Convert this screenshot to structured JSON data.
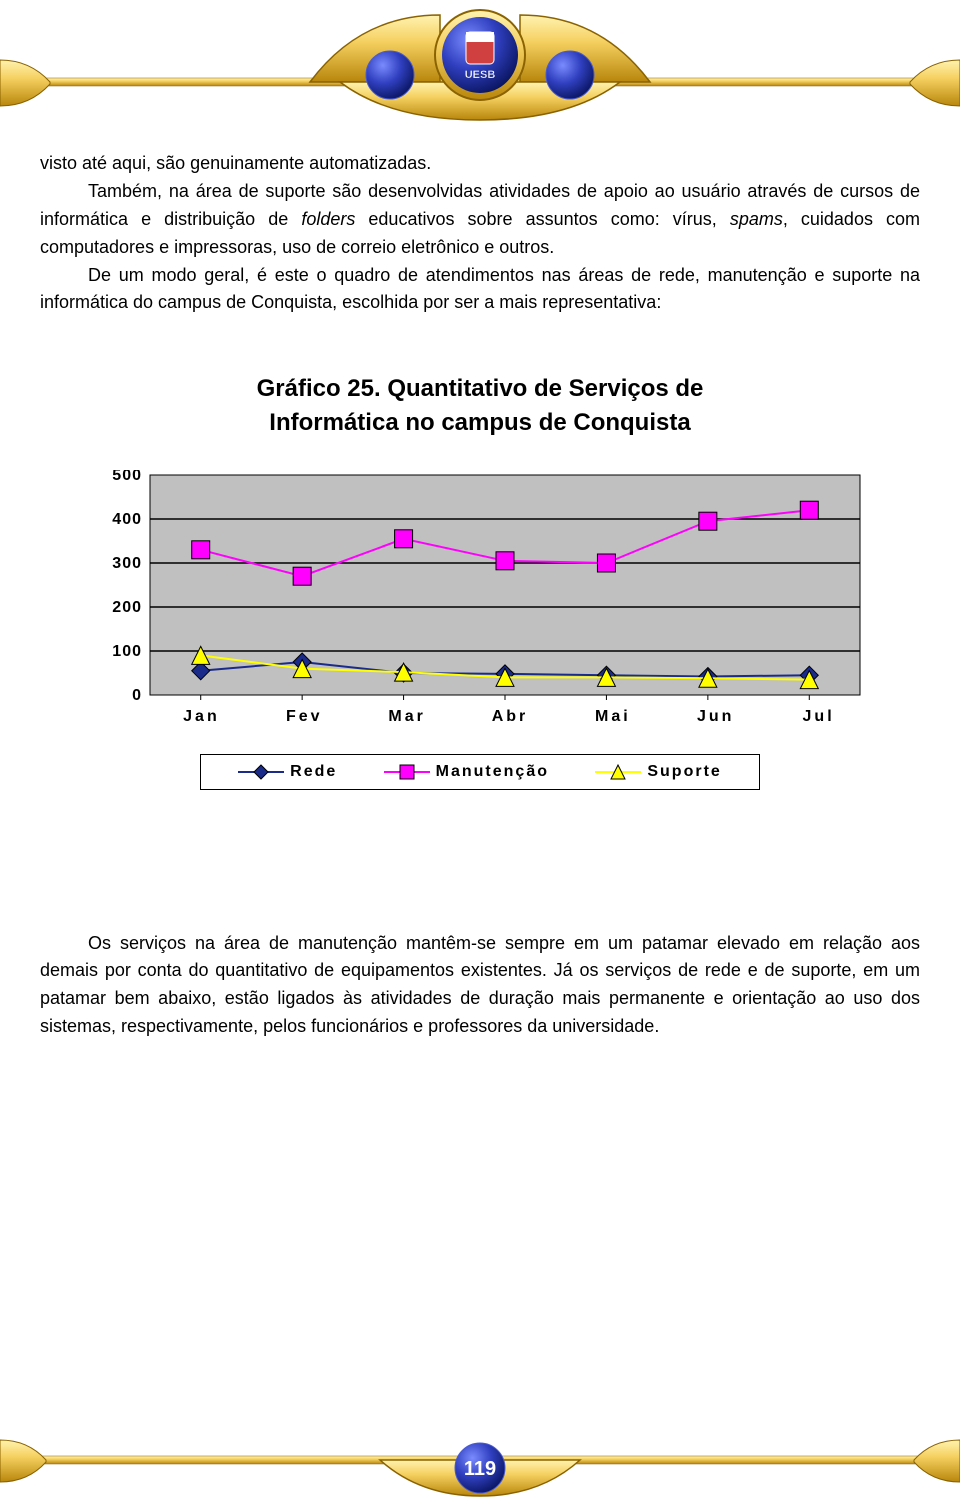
{
  "header": {
    "badge_text": "UESB",
    "gold_light": "#f5d060",
    "gold_dark": "#b8860b",
    "gold_edge": "#8a6200",
    "blue": "#1a2b8a",
    "blue_light": "#4a5bd0"
  },
  "paragraphs": {
    "p1": "visto até aqui, são genuinamente automatizadas.",
    "p2a": "Também, na área de suporte são desenvolvidas atividades de apoio ao usuário através de cursos de informática e distribuição de ",
    "p2_it1": "folders",
    "p2b": " educativos sobre assuntos como: vírus, ",
    "p2_it2": "spams",
    "p2c": ", cuidados com computadores e impressoras, uso de correio eletrônico e outros.",
    "p3": "De um modo geral, é este o quadro de atendimentos nas áreas de rede, manutenção e suporte na informática do campus de Conquista, escolhida por ser a mais representativa:",
    "p4": "Os serviços na área de manutenção mantêm-se sempre em um patamar elevado em relação aos demais por conta do quantitativo de equipamentos existentes. Já os serviços de rede e de suporte, em um patamar bem abaixo, estão ligados às atividades de duração mais permanente e orientação ao uso dos sistemas, respectivamente, pelos funcionários e professores da universidade."
  },
  "chart": {
    "title_l1": "Gráfico 25. Quantitativo de Serviços de",
    "title_l2": "Informática no campus de Conquista",
    "title_fontsize": 24,
    "type": "line",
    "categories": [
      "Jan",
      "Fev",
      "Mar",
      "Abr",
      "Mai",
      "Jun",
      "Jul"
    ],
    "series": [
      {
        "name": "Rede",
        "values": [
          55,
          75,
          50,
          48,
          45,
          42,
          45
        ],
        "color": "#1a2b8a",
        "marker": "diamond"
      },
      {
        "name": "Manutenção",
        "values": [
          330,
          270,
          355,
          305,
          300,
          395,
          420
        ],
        "color": "#ff00ff",
        "marker": "square"
      },
      {
        "name": "Suporte",
        "values": [
          90,
          60,
          52,
          40,
          40,
          38,
          35
        ],
        "color": "#ffff00",
        "marker": "triangle"
      }
    ],
    "ylim": [
      0,
      500
    ],
    "ytick_step": 100,
    "yticks": [
      "0",
      "100",
      "200",
      "300",
      "400",
      "500"
    ],
    "plot_bg": "#c0c0c0",
    "grid_color": "#000000",
    "axis_color": "#000000",
    "line_width": 2,
    "marker_size": 9,
    "marker_stroke": "#000000",
    "label_fontsize": 16
  },
  "legend": {
    "l1": "Rede",
    "l2": "Manutenção",
    "l3": "Suporte"
  },
  "page_number": "119",
  "footer": {
    "circle_fill": "#1a2b8a",
    "circle_hi": "#5b6de0",
    "num_color": "#ffffff"
  }
}
